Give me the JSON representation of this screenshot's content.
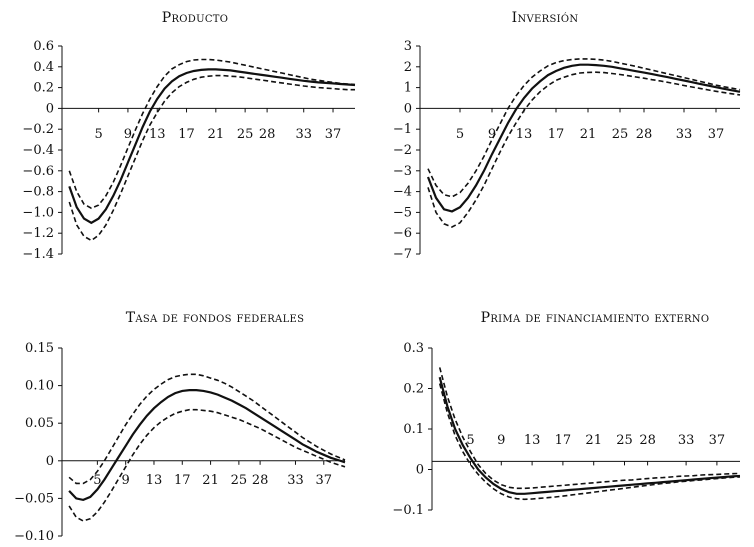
{
  "chart_data": [
    {
      "type": "line",
      "title": "Producto",
      "x_ticks": [
        "5",
        "9",
        "13",
        "17",
        "21",
        "25",
        "28",
        "33",
        "37"
      ],
      "y_ticks": [
        "0.6",
        "0.4",
        "0.2",
        "0",
        "−0.2",
        "−0.4",
        "−0.6",
        "−0.8",
        "−1.0",
        "−1.2",
        "−1.4"
      ],
      "ylim": [
        -1.4,
        0.6
      ],
      "xlim": [
        0,
        40
      ],
      "x": [
        1,
        2,
        3,
        4,
        5,
        6,
        7,
        8,
        9,
        10,
        11,
        12,
        13,
        14,
        15,
        16,
        17,
        18,
        19,
        20,
        21,
        22,
        23,
        24,
        25,
        26,
        27,
        28,
        29,
        30,
        31,
        32,
        33,
        34,
        35,
        36,
        37,
        38,
        39,
        40
      ],
      "series": [
        {
          "style": "solid",
          "values": [
            -0.75,
            -0.95,
            -1.06,
            -1.1,
            -1.06,
            -0.97,
            -0.84,
            -0.69,
            -0.52,
            -0.35,
            -0.18,
            -0.03,
            0.09,
            0.19,
            0.26,
            0.31,
            0.34,
            0.36,
            0.37,
            0.375,
            0.375,
            0.37,
            0.365,
            0.355,
            0.345,
            0.335,
            0.325,
            0.315,
            0.305,
            0.295,
            0.285,
            0.275,
            0.265,
            0.258,
            0.25,
            0.245,
            0.24,
            0.235,
            0.23,
            0.225
          ]
        },
        {
          "style": "dashed",
          "values": [
            -0.6,
            -0.8,
            -0.92,
            -0.96,
            -0.93,
            -0.84,
            -0.71,
            -0.55,
            -0.38,
            -0.21,
            -0.05,
            0.09,
            0.21,
            0.31,
            0.38,
            0.42,
            0.45,
            0.465,
            0.47,
            0.47,
            0.465,
            0.455,
            0.445,
            0.43,
            0.415,
            0.4,
            0.385,
            0.37,
            0.355,
            0.34,
            0.325,
            0.31,
            0.295,
            0.28,
            0.27,
            0.26,
            0.25,
            0.24,
            0.235,
            0.23
          ]
        },
        {
          "style": "dashed",
          "values": [
            -0.9,
            -1.12,
            -1.23,
            -1.27,
            -1.22,
            -1.12,
            -0.98,
            -0.82,
            -0.65,
            -0.48,
            -0.31,
            -0.16,
            -0.04,
            0.07,
            0.15,
            0.21,
            0.25,
            0.28,
            0.3,
            0.31,
            0.315,
            0.315,
            0.31,
            0.305,
            0.295,
            0.285,
            0.275,
            0.265,
            0.255,
            0.245,
            0.235,
            0.225,
            0.215,
            0.208,
            0.2,
            0.195,
            0.19,
            0.185,
            0.18,
            0.18
          ]
        }
      ]
    },
    {
      "type": "line",
      "title": "Inversión",
      "x_ticks": [
        "5",
        "9",
        "13",
        "17",
        "21",
        "25",
        "28",
        "33",
        "37"
      ],
      "y_ticks": [
        "3",
        "2",
        "1",
        "0",
        "−1",
        "−2",
        "−3",
        "−4",
        "−5",
        "−6",
        "−7"
      ],
      "ylim": [
        -7,
        3
      ],
      "xlim": [
        0,
        40
      ],
      "x": [
        1,
        2,
        3,
        4,
        5,
        6,
        7,
        8,
        9,
        10,
        11,
        12,
        13,
        14,
        15,
        16,
        17,
        18,
        19,
        20,
        21,
        22,
        23,
        24,
        25,
        26,
        27,
        28,
        29,
        30,
        31,
        32,
        33,
        34,
        35,
        36,
        37,
        38,
        39,
        40
      ],
      "series": [
        {
          "style": "solid",
          "values": [
            -3.3,
            -4.3,
            -4.85,
            -4.95,
            -4.75,
            -4.3,
            -3.7,
            -3.0,
            -2.2,
            -1.45,
            -0.7,
            -0.05,
            0.5,
            0.95,
            1.3,
            1.6,
            1.8,
            1.95,
            2.05,
            2.1,
            2.1,
            2.08,
            2.05,
            2.0,
            1.93,
            1.86,
            1.79,
            1.72,
            1.65,
            1.57,
            1.5,
            1.42,
            1.34,
            1.26,
            1.18,
            1.1,
            1.02,
            0.94,
            0.87,
            0.8
          ]
        },
        {
          "style": "dashed",
          "values": [
            -2.9,
            -3.7,
            -4.15,
            -4.25,
            -4.05,
            -3.6,
            -3.0,
            -2.3,
            -1.5,
            -0.75,
            0.0,
            0.6,
            1.1,
            1.5,
            1.8,
            2.05,
            2.2,
            2.3,
            2.35,
            2.38,
            2.38,
            2.36,
            2.32,
            2.26,
            2.18,
            2.1,
            2.02,
            1.93,
            1.84,
            1.75,
            1.66,
            1.57,
            1.48,
            1.39,
            1.3,
            1.21,
            1.12,
            1.04,
            0.97,
            0.9
          ]
        },
        {
          "style": "dashed",
          "values": [
            -3.8,
            -5.0,
            -5.55,
            -5.7,
            -5.5,
            -5.0,
            -4.4,
            -3.7,
            -2.9,
            -2.1,
            -1.35,
            -0.7,
            -0.1,
            0.4,
            0.8,
            1.1,
            1.35,
            1.5,
            1.62,
            1.7,
            1.73,
            1.74,
            1.72,
            1.68,
            1.63,
            1.57,
            1.51,
            1.45,
            1.38,
            1.32,
            1.25,
            1.18,
            1.1,
            1.03,
            0.96,
            0.89,
            0.82,
            0.76,
            0.7,
            0.65
          ]
        }
      ]
    },
    {
      "type": "line",
      "title": "Tasa de fondos federales",
      "x_ticks": [
        "5",
        "9",
        "13",
        "17",
        "21",
        "25",
        "28",
        "33",
        "37"
      ],
      "y_ticks": [
        "0.15",
        "0.10",
        "0.05",
        "0",
        "−0.05",
        "−0.10"
      ],
      "ylim": [
        -0.1,
        0.15
      ],
      "xlim": [
        0,
        40
      ],
      "x": [
        1,
        2,
        3,
        4,
        5,
        6,
        7,
        8,
        9,
        10,
        11,
        12,
        13,
        14,
        15,
        16,
        17,
        18,
        19,
        20,
        21,
        22,
        23,
        24,
        25,
        26,
        27,
        28,
        29,
        30,
        31,
        32,
        33,
        34,
        35,
        36,
        37,
        38,
        39,
        40
      ],
      "series": [
        {
          "style": "solid",
          "values": [
            -0.04,
            -0.05,
            -0.052,
            -0.048,
            -0.038,
            -0.025,
            -0.01,
            0.005,
            0.02,
            0.035,
            0.048,
            0.06,
            0.07,
            0.078,
            0.085,
            0.09,
            0.093,
            0.094,
            0.094,
            0.093,
            0.091,
            0.088,
            0.084,
            0.08,
            0.075,
            0.07,
            0.064,
            0.058,
            0.052,
            0.046,
            0.04,
            0.034,
            0.028,
            0.022,
            0.017,
            0.012,
            0.008,
            0.004,
            0.001,
            -0.002
          ]
        },
        {
          "style": "dashed",
          "values": [
            -0.022,
            -0.03,
            -0.03,
            -0.025,
            -0.014,
            0.0,
            0.016,
            0.032,
            0.048,
            0.062,
            0.075,
            0.086,
            0.095,
            0.102,
            0.108,
            0.112,
            0.114,
            0.115,
            0.115,
            0.113,
            0.11,
            0.107,
            0.103,
            0.098,
            0.092,
            0.086,
            0.08,
            0.073,
            0.066,
            0.059,
            0.052,
            0.045,
            0.038,
            0.031,
            0.025,
            0.019,
            0.014,
            0.009,
            0.005,
            0.001
          ]
        },
        {
          "style": "dashed",
          "values": [
            -0.06,
            -0.075,
            -0.08,
            -0.077,
            -0.068,
            -0.055,
            -0.04,
            -0.024,
            -0.008,
            0.008,
            0.022,
            0.034,
            0.044,
            0.052,
            0.058,
            0.063,
            0.066,
            0.068,
            0.068,
            0.067,
            0.066,
            0.064,
            0.061,
            0.058,
            0.055,
            0.051,
            0.047,
            0.043,
            0.038,
            0.033,
            0.028,
            0.023,
            0.018,
            0.014,
            0.01,
            0.006,
            0.002,
            -0.002,
            -0.005,
            -0.008
          ]
        }
      ]
    },
    {
      "type": "line",
      "title": "Prima de financiamiento externo",
      "x_ticks": [
        "5",
        "9",
        "13",
        "17",
        "21",
        "25",
        "28",
        "33",
        "37"
      ],
      "y_ticks": [
        "0.3",
        "0.2",
        "0.1",
        "0",
        "−0.1"
      ],
      "ylim": [
        -0.15,
        0.35
      ],
      "xlim": [
        0,
        40
      ],
      "x": [
        1,
        2,
        3,
        4,
        5,
        6,
        7,
        8,
        9,
        10,
        11,
        12,
        13,
        14,
        15,
        16,
        17,
        18,
        19,
        20,
        21,
        22,
        23,
        24,
        25,
        26,
        27,
        28,
        29,
        30,
        31,
        32,
        33,
        34,
        35,
        36,
        37,
        38,
        39,
        40
      ],
      "series": [
        {
          "style": "solid",
          "values": [
            0.26,
            0.17,
            0.1,
            0.05,
            0.01,
            -0.025,
            -0.05,
            -0.07,
            -0.085,
            -0.095,
            -0.1,
            -0.1,
            -0.098,
            -0.096,
            -0.094,
            -0.092,
            -0.09,
            -0.088,
            -0.086,
            -0.084,
            -0.082,
            -0.08,
            -0.078,
            -0.076,
            -0.074,
            -0.072,
            -0.07,
            -0.068,
            -0.066,
            -0.064,
            -0.062,
            -0.06,
            -0.058,
            -0.056,
            -0.054,
            -0.052,
            -0.05,
            -0.048,
            -0.046,
            -0.045
          ]
        },
        {
          "style": "dashed",
          "values": [
            0.29,
            0.2,
            0.13,
            0.075,
            0.03,
            -0.01,
            -0.038,
            -0.058,
            -0.072,
            -0.08,
            -0.083,
            -0.083,
            -0.082,
            -0.08,
            -0.078,
            -0.076,
            -0.074,
            -0.072,
            -0.07,
            -0.068,
            -0.066,
            -0.064,
            -0.062,
            -0.06,
            -0.058,
            -0.057,
            -0.055,
            -0.053,
            -0.051,
            -0.05,
            -0.048,
            -0.046,
            -0.045,
            -0.044,
            -0.042,
            -0.041,
            -0.04,
            -0.039,
            -0.038,
            -0.037
          ]
        },
        {
          "style": "dashed",
          "values": [
            0.24,
            0.15,
            0.08,
            0.03,
            -0.01,
            -0.04,
            -0.065,
            -0.085,
            -0.1,
            -0.11,
            -0.115,
            -0.117,
            -0.116,
            -0.114,
            -0.112,
            -0.11,
            -0.107,
            -0.104,
            -0.101,
            -0.098,
            -0.095,
            -0.092,
            -0.089,
            -0.086,
            -0.083,
            -0.08,
            -0.077,
            -0.074,
            -0.071,
            -0.068,
            -0.066,
            -0.063,
            -0.061,
            -0.059,
            -0.057,
            -0.055,
            -0.053,
            -0.051,
            -0.049,
            -0.048
          ]
        }
      ]
    }
  ]
}
